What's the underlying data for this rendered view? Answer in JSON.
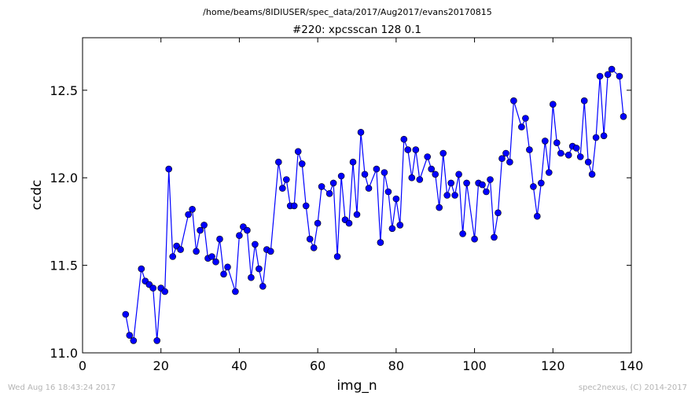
{
  "suptitle": "/home/beams/8IDIUSER/spec_data/2017/Aug2017/evans20170815",
  "footer": {
    "timestamp": "Wed Aug 16 18:43:24 2017",
    "credit": "spec2nexus, (C) 2014-2017"
  },
  "colors": {
    "series": "#0000ff",
    "footer": "#b4b4b4"
  },
  "chart_data": {
    "type": "line",
    "title": "#220: xpcsscan 128 0.1",
    "xlabel": "img_n",
    "ylabel": "ccdc",
    "xlim": [
      0,
      140
    ],
    "ylim": [
      11.0,
      12.8
    ],
    "xticks": [
      "0",
      "20",
      "40",
      "60",
      "80",
      "100",
      "120",
      "140"
    ],
    "yticks": [
      "11.0",
      "11.5",
      "12.0",
      "12.5"
    ],
    "marker": "circle",
    "grid": false,
    "x": [
      11,
      12,
      13,
      15,
      16,
      17,
      18,
      19,
      20,
      21,
      22,
      23,
      24,
      25,
      27,
      28,
      29,
      30,
      31,
      32,
      33,
      34,
      35,
      36,
      37,
      39,
      40,
      41,
      42,
      43,
      44,
      45,
      46,
      47,
      48,
      50,
      51,
      52,
      53,
      54,
      55,
      56,
      57,
      58,
      59,
      60,
      61,
      63,
      64,
      65,
      66,
      67,
      68,
      69,
      70,
      71,
      72,
      73,
      75,
      76,
      77,
      78,
      79,
      80,
      81,
      82,
      83,
      84,
      85,
      86,
      88,
      89,
      90,
      91,
      92,
      93,
      94,
      95,
      96,
      97,
      98,
      100,
      101,
      102,
      103,
      104,
      105,
      106,
      107,
      108,
      109,
      110,
      112,
      113,
      114,
      115,
      116,
      117,
      118,
      119,
      120,
      121,
      122,
      124,
      125,
      126,
      127,
      128,
      129,
      130,
      131,
      132,
      133,
      134,
      135,
      137,
      138
    ],
    "y": [
      11.22,
      11.1,
      11.07,
      11.48,
      11.41,
      11.39,
      11.37,
      11.07,
      11.37,
      11.35,
      12.05,
      11.55,
      11.61,
      11.59,
      11.79,
      11.82,
      11.58,
      11.7,
      11.73,
      11.54,
      11.55,
      11.52,
      11.65,
      11.45,
      11.49,
      11.35,
      11.67,
      11.72,
      11.7,
      11.43,
      11.62,
      11.48,
      11.38,
      11.59,
      11.58,
      12.09,
      11.94,
      11.99,
      11.84,
      11.84,
      12.15,
      12.08,
      11.84,
      11.65,
      11.6,
      11.74,
      11.95,
      11.91,
      11.97,
      11.55,
      12.01,
      11.76,
      11.74,
      12.09,
      11.79,
      12.26,
      12.02,
      11.94,
      12.05,
      11.63,
      12.03,
      11.92,
      11.71,
      11.88,
      11.73,
      12.22,
      12.16,
      12.0,
      12.16,
      11.99,
      12.12,
      12.05,
      12.02,
      11.83,
      12.14,
      11.9,
      11.97,
      11.9,
      12.02,
      11.68,
      11.97,
      11.65,
      11.97,
      11.96,
      11.92,
      11.99,
      11.66,
      11.8,
      12.11,
      12.14,
      12.09,
      12.44,
      12.29,
      12.34,
      12.16,
      11.95,
      11.78,
      11.97,
      12.21,
      12.03,
      12.42,
      12.2,
      12.14,
      12.13,
      12.18,
      12.17,
      12.12,
      12.44,
      12.09,
      12.02,
      12.23,
      12.58,
      12.24,
      12.59,
      12.62,
      12.58,
      12.35
    ]
  }
}
